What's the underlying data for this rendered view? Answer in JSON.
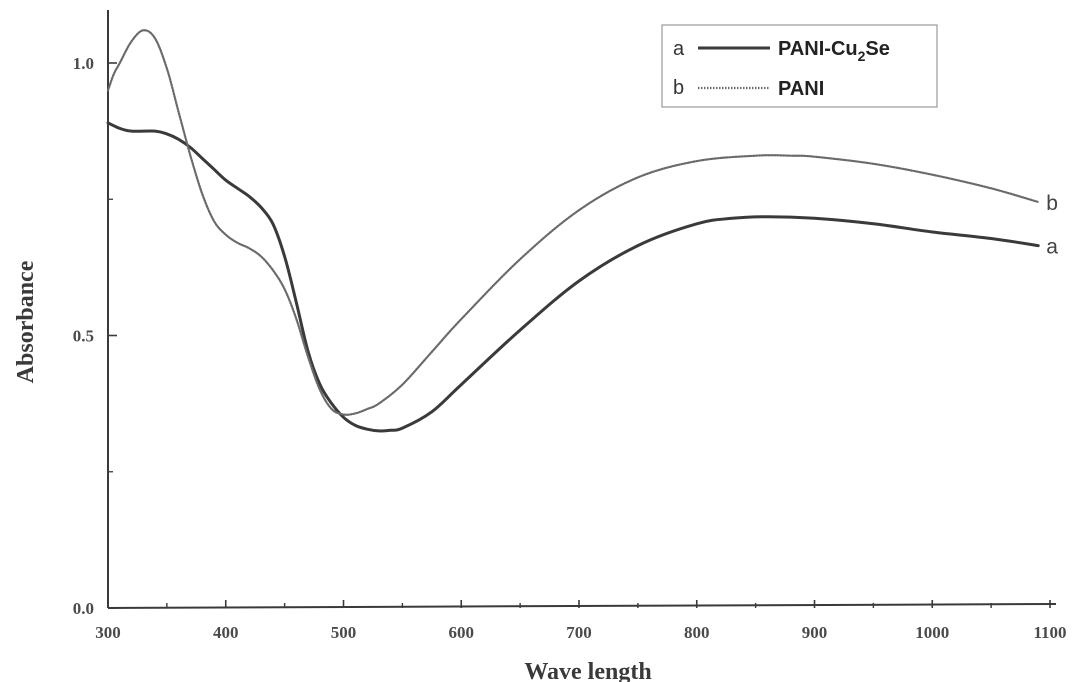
{
  "chart_data": {
    "type": "line",
    "title": "",
    "xlabel": "Wave length",
    "ylabel": "Absorbance",
    "xlim": [
      300,
      1100
    ],
    "ylim": [
      0,
      1.0
    ],
    "x_ticks": [
      300,
      400,
      500,
      600,
      700,
      800,
      900,
      1000,
      1100
    ],
    "x_tick_labels": [
      "300",
      "400",
      "500",
      "600",
      "700",
      "800",
      "900",
      "1000",
      "1100"
    ],
    "y_ticks": [
      0.0,
      0.5,
      1.0
    ],
    "y_tick_labels": [
      "0.0",
      "0.5",
      "1.0"
    ],
    "grid": false,
    "legend": {
      "placement": "top-right",
      "entries": [
        {
          "letter": "a",
          "name_main": "PANI-Cu",
          "name_sub": "2",
          "name_tail": "Se"
        },
        {
          "letter": "b",
          "name_main": "PANI",
          "name_sub": "",
          "name_tail": ""
        }
      ]
    },
    "series": [
      {
        "name": "PANI-Cu2Se",
        "label": "a",
        "style": "solid",
        "color": "#3a3a3a",
        "x": [
          300,
          310,
          320,
          340,
          350,
          360,
          370,
          380,
          390,
          400,
          410,
          420,
          430,
          440,
          450,
          460,
          470,
          480,
          490,
          500,
          510,
          520,
          530,
          540,
          550,
          575,
          600,
          650,
          700,
          750,
          800,
          830,
          860,
          900,
          950,
          1000,
          1050,
          1090
        ],
        "y": [
          0.89,
          0.88,
          0.875,
          0.875,
          0.87,
          0.86,
          0.845,
          0.825,
          0.805,
          0.785,
          0.77,
          0.755,
          0.735,
          0.705,
          0.645,
          0.56,
          0.47,
          0.41,
          0.375,
          0.35,
          0.335,
          0.328,
          0.325,
          0.326,
          0.33,
          0.36,
          0.41,
          0.51,
          0.6,
          0.665,
          0.705,
          0.715,
          0.718,
          0.715,
          0.705,
          0.69,
          0.678,
          0.665
        ]
      },
      {
        "name": "PANI",
        "label": "b",
        "style": "dotted",
        "color": "#6a6a6a",
        "x": [
          300,
          305,
          310,
          320,
          330,
          340,
          350,
          360,
          370,
          380,
          390,
          400,
          410,
          420,
          430,
          440,
          450,
          460,
          470,
          480,
          490,
          500,
          510,
          520,
          530,
          550,
          575,
          600,
          650,
          700,
          750,
          800,
          850,
          880,
          900,
          950,
          1000,
          1050,
          1090
        ],
        "y": [
          0.95,
          0.98,
          1.0,
          1.04,
          1.06,
          1.045,
          0.99,
          0.91,
          0.83,
          0.76,
          0.71,
          0.685,
          0.67,
          0.66,
          0.645,
          0.62,
          0.585,
          0.53,
          0.46,
          0.4,
          0.365,
          0.355,
          0.357,
          0.365,
          0.375,
          0.41,
          0.47,
          0.53,
          0.64,
          0.73,
          0.79,
          0.82,
          0.83,
          0.83,
          0.828,
          0.815,
          0.795,
          0.77,
          0.745
        ]
      }
    ]
  }
}
